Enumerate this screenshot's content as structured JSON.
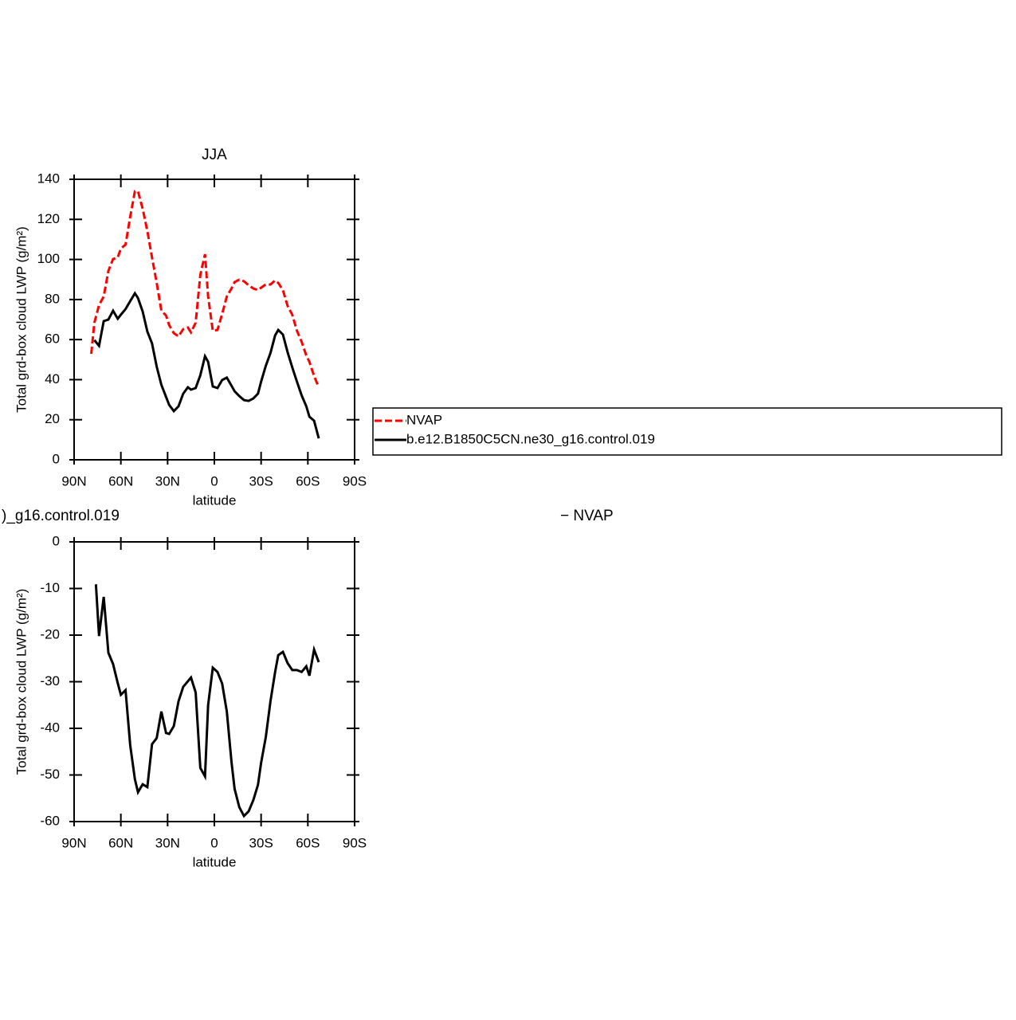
{
  "chart_data": [
    {
      "type": "line",
      "title": "JJA",
      "xlabel": "latitude",
      "ylabel": "Total grd-box cloud LWP (g/m²)",
      "xlim": [
        90,
        -90
      ],
      "xticks": [
        {
          "value": 90,
          "label": "90N"
        },
        {
          "value": 60,
          "label": "60N"
        },
        {
          "value": 30,
          "label": "30N"
        },
        0,
        {
          "value": -30,
          "label": "30S"
        },
        {
          "value": -60,
          "label": "60S"
        },
        {
          "value": -90,
          "label": "90S"
        }
      ],
      "ylim": [
        0,
        140
      ],
      "yticks": [
        0,
        20,
        40,
        60,
        80,
        100,
        120,
        140
      ],
      "legend": "outside-right",
      "x": [
        79,
        77,
        74,
        71,
        68,
        65,
        62,
        60,
        57,
        54,
        51,
        49,
        46,
        43,
        40,
        37,
        34,
        31,
        29,
        26,
        23,
        20,
        17,
        15,
        12,
        9,
        6,
        4,
        1,
        -2,
        -5,
        -8,
        -11,
        -13,
        -16,
        -19,
        -22,
        -25,
        -28,
        -30,
        -33,
        -36,
        -39,
        -41,
        -44,
        -47,
        -50,
        -53,
        -56,
        -59,
        -61,
        -64,
        -67
      ],
      "series": [
        {
          "name": "NVAP",
          "color": "#ff0000",
          "line_style": "dashed",
          "values": [
            52.9,
            68.4,
            77.2,
            81.5,
            94.3,
            100.2,
            101,
            105.4,
            107.4,
            121.3,
            134,
            134,
            125.3,
            114.2,
            101,
            88.3,
            74.4,
            72,
            67.2,
            63.2,
            61.6,
            65.2,
            66,
            63.6,
            68.4,
            92.3,
            102.6,
            81.5,
            64.4,
            64.8,
            72.8,
            81.5,
            85.5,
            88.7,
            89.9,
            89.1,
            87.1,
            85.5,
            84.7,
            85.9,
            87.5,
            87.5,
            89.5,
            88.3,
            84.7,
            76.8,
            72.4,
            64.4,
            58.9,
            52.1,
            48.9,
            41.8,
            36.2
          ]
        },
        {
          "name": "b.e12.B1850C5CN.ne30_g16.control.019",
          "color": "#000000",
          "line_style": "solid",
          "values": [
            null,
            59.7,
            56.9,
            69.2,
            70,
            74.4,
            70.4,
            72.4,
            75.2,
            79.2,
            83.1,
            80.7,
            74,
            64,
            58.1,
            46.5,
            37.4,
            31.4,
            27.4,
            24.3,
            26.7,
            33,
            36.2,
            35,
            35.8,
            42.2,
            51.7,
            48.9,
            36.6,
            35.8,
            39.8,
            41,
            37,
            34.2,
            31.8,
            29.8,
            29.4,
            30.6,
            33,
            39,
            46.9,
            53.3,
            62.1,
            64.8,
            62.5,
            53.7,
            46.1,
            39,
            32.2,
            26.7,
            21.5,
            19.5,
            10.7
          ]
        }
      ]
    },
    {
      "type": "line",
      "left_title": ")_g16.control.019",
      "right_title": "− NVAP",
      "xlabel": "latitude",
      "ylabel": "Total grd-box cloud LWP (g/m²)",
      "xlim": [
        90,
        -90
      ],
      "xticks": [
        {
          "value": 90,
          "label": "90N"
        },
        {
          "value": 60,
          "label": "60N"
        },
        {
          "value": 30,
          "label": "30N"
        },
        0,
        {
          "value": -30,
          "label": "30S"
        },
        {
          "value": -60,
          "label": "60S"
        },
        {
          "value": -90,
          "label": "90S"
        }
      ],
      "ylim": [
        -60,
        0
      ],
      "yticks": [
        -60,
        -50,
        -40,
        -30,
        -20,
        -10,
        0
      ],
      "x": [
        76,
        74,
        71,
        68,
        65,
        62,
        60,
        57,
        54,
        51,
        49,
        46,
        43,
        40,
        37,
        34,
        31,
        29,
        26,
        23,
        20,
        17,
        15,
        12,
        9,
        6,
        4,
        1,
        -2,
        -5,
        -8,
        -11,
        -13,
        -16,
        -19,
        -22,
        -25,
        -28,
        -30,
        -33,
        -36,
        -39,
        -41,
        -44,
        -47,
        -50,
        -53,
        -56,
        -59,
        -61,
        -64,
        -67
      ],
      "series": [
        {
          "color": "#000000",
          "line_style": "solid",
          "values": [
            -9.1,
            -20.2,
            -11.8,
            -23.8,
            -26.2,
            -30.3,
            -32.8,
            -31.8,
            -43.6,
            -50.9,
            -53.7,
            -52,
            -52.6,
            -43.4,
            -42.1,
            -36.4,
            -41,
            -41.2,
            -39.5,
            -34.2,
            -31.1,
            -29.9,
            -29.1,
            -32.3,
            -48.5,
            -50.3,
            -35,
            -27,
            -27.9,
            -30.4,
            -36.4,
            -47.2,
            -53,
            -56.9,
            -58.8,
            -57.8,
            -55.4,
            -52.1,
            -47.4,
            -41.9,
            -34.2,
            -27.9,
            -24.3,
            -23.6,
            -26,
            -27.5,
            -27.5,
            -27.9,
            -26.7,
            -28.7,
            -23.1,
            -25.8
          ]
        }
      ]
    }
  ]
}
